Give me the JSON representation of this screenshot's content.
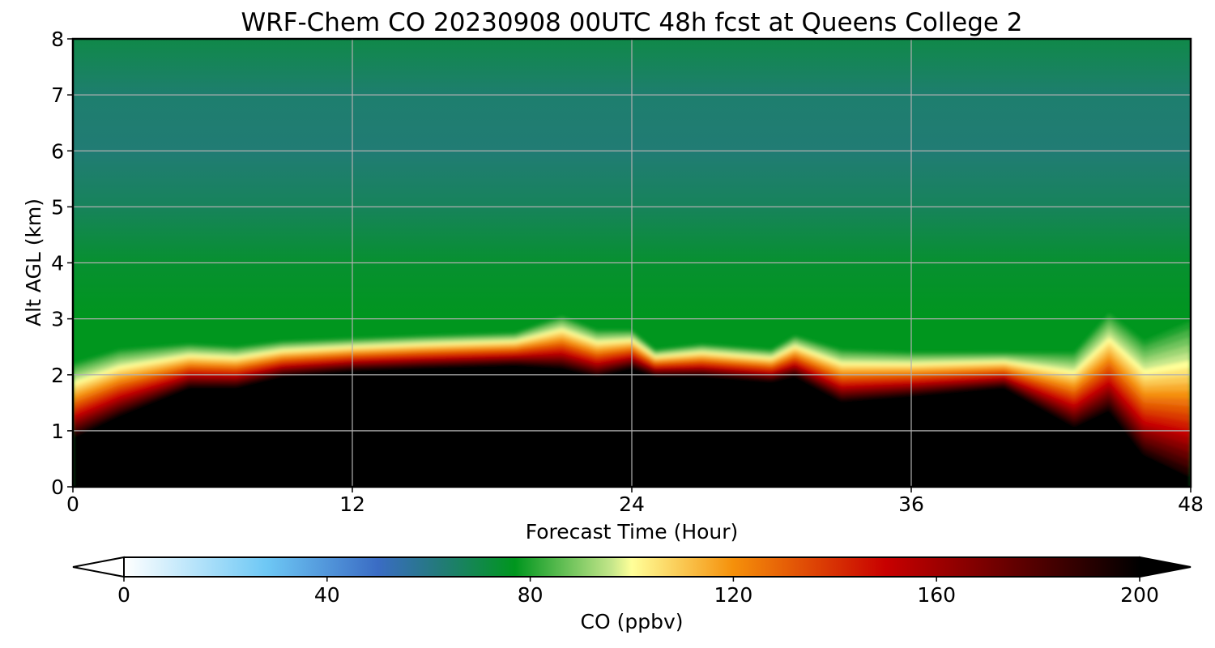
{
  "chart_data": {
    "type": "heatmap",
    "title": "WRF-Chem CO  20230908 00UTC 48h fcst at Queens College 2",
    "xlabel": "Forecast Time (Hour)",
    "ylabel": "Alt AGL (km)",
    "xlim": [
      0,
      48
    ],
    "ylim": [
      0,
      8
    ],
    "xticks": [
      0,
      12,
      24,
      36,
      48
    ],
    "yticks": [
      0,
      1,
      2,
      3,
      4,
      5,
      6,
      7,
      8
    ],
    "grid": true,
    "z_variable": "CO",
    "z_units": "ppbv",
    "colorbar": {
      "label": "CO  (ppbv)",
      "orientation": "horizontal",
      "placement": "bottom",
      "range": [
        0,
        200
      ],
      "ticks": [
        0,
        40,
        80,
        120,
        160,
        200
      ],
      "extend": "both",
      "under_color": "#ffffff",
      "over_color": "#000000",
      "color_stops": [
        {
          "value": 0,
          "color": "#ffffff"
        },
        {
          "value": 28,
          "color": "#6ec8f5"
        },
        {
          "value": 50,
          "color": "#3a6cc4"
        },
        {
          "value": 62,
          "color": "#237a7a"
        },
        {
          "value": 77,
          "color": "#00961e"
        },
        {
          "value": 96,
          "color": "#c4e68a"
        },
        {
          "value": 100,
          "color": "#ffff99"
        },
        {
          "value": 120,
          "color": "#f5900a"
        },
        {
          "value": 150,
          "color": "#c80000"
        },
        {
          "value": 200,
          "color": "#000000"
        }
      ]
    },
    "x": [
      0,
      2,
      5,
      7,
      9,
      12,
      15,
      19,
      21,
      22.5,
      24,
      25,
      27,
      30,
      31,
      33,
      36,
      40,
      43,
      44.5,
      46,
      48
    ],
    "mixing_layer_top_km": [
      2.2,
      2.45,
      2.55,
      2.5,
      2.6,
      2.65,
      2.7,
      2.75,
      3.05,
      2.8,
      2.8,
      2.45,
      2.55,
      2.45,
      2.7,
      2.45,
      2.4,
      2.4,
      2.4,
      3.1,
      2.6,
      2.95
    ],
    "saturation_top_km": [
      0.9,
      1.3,
      1.8,
      1.8,
      2.0,
      2.1,
      2.15,
      2.2,
      2.15,
      2.0,
      2.15,
      2.0,
      2.0,
      1.9,
      2.0,
      1.55,
      1.65,
      1.8,
      1.1,
      1.4,
      0.6,
      0.2
    ],
    "free_troposphere_ppbv_by_altitude": [
      {
        "alt_km": 3.0,
        "co": 77
      },
      {
        "alt_km": 4.0,
        "co": 74
      },
      {
        "alt_km": 5.0,
        "co": 67
      },
      {
        "alt_km": 6.0,
        "co": 63
      },
      {
        "alt_km": 7.0,
        "co": 64
      },
      {
        "alt_km": 8.0,
        "co": 70
      }
    ]
  }
}
